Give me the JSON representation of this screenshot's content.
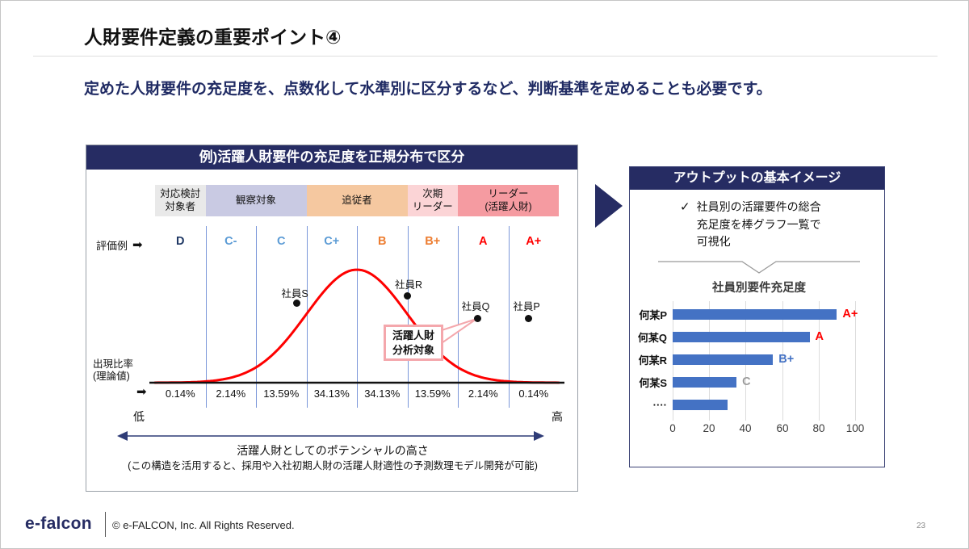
{
  "slide": {
    "title": "人財要件定義の重要ポイント④",
    "subtitle": "定めた人財要件の充足度を、点数化して水準別に区分するなど、判断基準を定めることも必要です。",
    "page_number": "23"
  },
  "footer": {
    "logo": "e-falcon",
    "copyright": "© e-FALCON, Inc. All Rights Reserved."
  },
  "left_panel": {
    "header": "例)活躍人財要件の充足度を正規分布で区分",
    "eval_label": "評価例",
    "arrow_glyph": "➡",
    "y_axis_label": "出現比率\n(理論値)",
    "bands": [
      {
        "label": "対応検討\n対象者",
        "color": "#E9E9E9"
      },
      {
        "label": "観察対象",
        "color": "#C9CAE3"
      },
      {
        "label": "追従者",
        "color": "#F5C8A0"
      },
      {
        "label": "次期\nリーダー",
        "color": "#FBD4D6"
      },
      {
        "label": "リーダー\n(活躍人財)",
        "color": "#F59BA1"
      }
    ],
    "grades": [
      {
        "label": "D",
        "color": "#1F3864"
      },
      {
        "label": "C-",
        "color": "#5B9BD5"
      },
      {
        "label": "C",
        "color": "#5B9BD5"
      },
      {
        "label": "C+",
        "color": "#5B9BD5"
      },
      {
        "label": "B",
        "color": "#ED7D31"
      },
      {
        "label": "B+",
        "color": "#ED7D31"
      },
      {
        "label": "A",
        "color": "#FF0000"
      },
      {
        "label": "A+",
        "color": "#FF0000"
      }
    ],
    "callout": "活躍人財\n分析対象",
    "low_label": "低",
    "high_label": "高",
    "caption_line1": "活躍人財としてのポテンシャルの高さ",
    "caption_line2": "(この構造を活用すると、採用や入社初期人財の活躍人財適性の予測数理モデル開発が可能)"
  },
  "right_panel": {
    "header": "アウトプットの基本イメージ",
    "check_glyph": "✓",
    "check_text": "社員別の活躍要件の総合\n充足度を棒グラフ一覧で\n可視化",
    "chart_title": "社員別要件充足度",
    "grade_colors": [
      "#FF0000",
      "#FF0000",
      "#4472C4",
      "#9B9B9B",
      "#000000"
    ]
  },
  "chart_data": [
    {
      "type": "area",
      "title": "例)活躍人財要件の充足度を正規分布で区分",
      "curve": "normal-distribution",
      "x_grades": [
        "D",
        "C-",
        "C",
        "C+",
        "B",
        "B+",
        "A",
        "A+"
      ],
      "segment_share_pct": [
        0.14,
        2.14,
        13.59,
        34.13,
        34.13,
        13.59,
        2.14,
        0.14
      ],
      "percent_labels": [
        "0.14%",
        "2.14%",
        "13.59%",
        "34.13%",
        "34.13%",
        "13.59%",
        "2.14%",
        "0.14%"
      ],
      "bands": [
        "対応検討対象者",
        "観察対象",
        "追従者",
        "次期リーダー",
        "リーダー(活躍人財)"
      ],
      "band_grade_spans": [
        1,
        2,
        2,
        1,
        2
      ],
      "points": [
        "社員S",
        "社員R",
        "社員Q",
        "社員P"
      ],
      "ylabel": "出現比率(理論値)",
      "x_low": "低",
      "x_high": "高",
      "x_axis_caption": "活躍人財としてのポテンシャルの高さ"
    },
    {
      "type": "bar",
      "orientation": "horizontal",
      "title": "社員別要件充足度",
      "categories": [
        "何某P",
        "何某Q",
        "何某R",
        "何某S",
        "····"
      ],
      "values": [
        90,
        75,
        55,
        35,
        30
      ],
      "value_labels": [
        "A+",
        "A",
        "B+",
        "C",
        ""
      ],
      "xlim": [
        0,
        100
      ],
      "x_ticks": [
        "0",
        "20",
        "40",
        "60",
        "80",
        "100"
      ],
      "bar_color": "#4472C4",
      "grid": true
    }
  ]
}
